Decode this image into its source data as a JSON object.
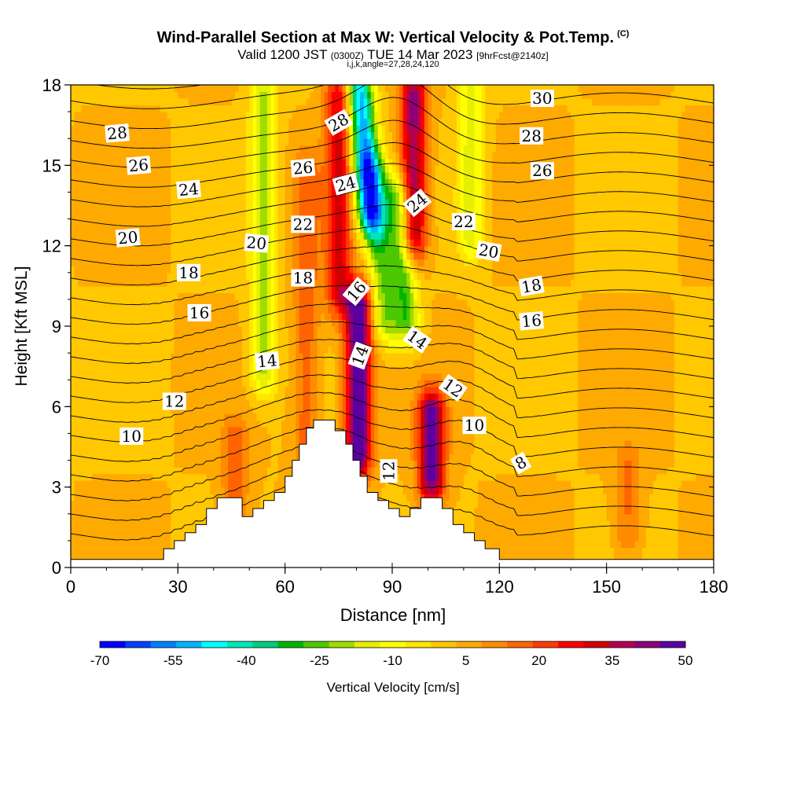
{
  "title": {
    "main": "Wind-Parallel Section at Max W: Vertical Velocity & Pot.Temp.",
    "main_mark": "(C)",
    "valid_prefix": "Valid 1200 JST",
    "valid_utc": "(0300Z)",
    "valid_date": "TUE 14 Mar 2023",
    "forecast": "[9hrFcst@2140z]",
    "indices": "i,j,k,angle=27,28,24,120"
  },
  "chart_data": {
    "type": "heatmap",
    "xlabel": "Distance [nm]",
    "ylabel": "Height [Kft MSL]",
    "xlim": [
      0,
      180
    ],
    "ylim": [
      0,
      18
    ],
    "xticks": [
      0,
      30,
      60,
      90,
      120,
      150,
      180
    ],
    "yticks": [
      0,
      3,
      6,
      9,
      12,
      15,
      18
    ],
    "colorbar": {
      "label": "Vertical Velocity [cm/s]",
      "tick_labels": [
        "-70",
        "-55",
        "-40",
        "-25",
        "-10",
        "5",
        "20",
        "35",
        "50"
      ],
      "range": [
        -70,
        50
      ],
      "colors": [
        "#0000ff",
        "#0040ff",
        "#0080ff",
        "#00b4ff",
        "#00ffff",
        "#00e6b4",
        "#00cc80",
        "#00b400",
        "#4cc800",
        "#a0dc00",
        "#e6f000",
        "#ffff00",
        "#ffe600",
        "#ffc800",
        "#ffaa00",
        "#ff8c00",
        "#ff6400",
        "#ff3c00",
        "#ff0000",
        "#d20000",
        "#b40050",
        "#8c0078",
        "#5a00a0"
      ]
    },
    "background_velocity": 3,
    "velocity_features": [
      {
        "x": 54,
        "y0": 7,
        "y1": 18,
        "w": -22
      },
      {
        "x": 66,
        "y0": 4,
        "y1": 15,
        "w": 14
      },
      {
        "x": 75,
        "y0": 10,
        "y1": 18,
        "w": 28
      },
      {
        "x": 80.5,
        "y0": 4,
        "y1": 10,
        "w": 50
      },
      {
        "x": 82,
        "y0": 13,
        "y1": 18,
        "w": -55
      },
      {
        "x": 84,
        "y0": 9,
        "y1": 15,
        "w": -25
      },
      {
        "x": 90,
        "y0": 9,
        "y1": 14,
        "w": -30
      },
      {
        "x": 96,
        "y0": 12,
        "y1": 18,
        "w": 38
      },
      {
        "x": 101,
        "y0": 3,
        "y1": 6,
        "w": 45
      },
      {
        "x": 112,
        "y0": 12,
        "y1": 18,
        "w": -18
      },
      {
        "x": 46,
        "y0": 2,
        "y1": 5,
        "w": 14
      },
      {
        "x": 156,
        "y0": 1,
        "y1": 4,
        "w": 12
      }
    ],
    "terrain": [
      [
        0,
        0.3
      ],
      [
        26,
        0.3
      ],
      [
        26,
        0.7
      ],
      [
        29,
        0.7
      ],
      [
        29,
        1.0
      ],
      [
        32,
        1.0
      ],
      [
        32,
        1.3
      ],
      [
        35,
        1.3
      ],
      [
        35,
        1.6
      ],
      [
        38,
        1.6
      ],
      [
        38,
        2.2
      ],
      [
        41,
        2.2
      ],
      [
        41,
        2.6
      ],
      [
        48,
        2.6
      ],
      [
        48,
        1.9
      ],
      [
        51,
        1.9
      ],
      [
        51,
        2.2
      ],
      [
        54,
        2.2
      ],
      [
        54,
        2.5
      ],
      [
        57,
        2.5
      ],
      [
        57,
        2.8
      ],
      [
        60,
        2.8
      ],
      [
        60,
        3.4
      ],
      [
        62,
        3.4
      ],
      [
        62,
        4.0
      ],
      [
        64,
        4.0
      ],
      [
        64,
        4.6
      ],
      [
        66,
        4.6
      ],
      [
        66,
        5.2
      ],
      [
        68,
        5.2
      ],
      [
        68,
        5.5
      ],
      [
        74,
        5.5
      ],
      [
        74,
        5.1
      ],
      [
        77,
        5.1
      ],
      [
        77,
        4.6
      ],
      [
        79,
        4.6
      ],
      [
        79,
        4.0
      ],
      [
        81,
        4.0
      ],
      [
        81,
        3.4
      ],
      [
        83,
        3.4
      ],
      [
        83,
        2.8
      ],
      [
        86,
        2.8
      ],
      [
        86,
        2.5
      ],
      [
        89,
        2.5
      ],
      [
        89,
        2.2
      ],
      [
        92,
        2.2
      ],
      [
        92,
        1.9
      ],
      [
        95,
        1.9
      ],
      [
        95,
        2.2
      ],
      [
        98,
        2.2
      ],
      [
        98,
        2.6
      ],
      [
        104,
        2.6
      ],
      [
        104,
        2.2
      ],
      [
        107,
        2.2
      ],
      [
        107,
        1.6
      ],
      [
        110,
        1.6
      ],
      [
        110,
        1.3
      ],
      [
        113,
        1.3
      ],
      [
        113,
        1.0
      ],
      [
        116,
        1.0
      ],
      [
        116,
        0.7
      ],
      [
        120,
        0.7
      ],
      [
        120,
        0.3
      ],
      [
        124,
        0.3
      ],
      [
        124,
        0.3
      ],
      [
        181,
        0.3
      ]
    ],
    "theta_contour_levels": [
      8,
      9,
      10,
      11,
      12,
      13,
      14,
      15,
      16,
      17,
      18,
      19,
      20,
      21,
      22,
      23,
      24,
      25,
      26,
      27,
      28,
      29,
      30,
      31
    ],
    "theta_labels": [
      {
        "text": "28",
        "x": 13,
        "y": 16.2,
        "angle": -5
      },
      {
        "text": "26",
        "x": 19,
        "y": 15.0,
        "angle": -5
      },
      {
        "text": "24",
        "x": 33,
        "y": 14.1,
        "angle": -5
      },
      {
        "text": "20",
        "x": 16,
        "y": 12.3,
        "angle": -5
      },
      {
        "text": "18",
        "x": 33,
        "y": 11.0,
        "angle": 0
      },
      {
        "text": "16",
        "x": 36,
        "y": 9.5,
        "angle": 0
      },
      {
        "text": "12",
        "x": 29,
        "y": 6.2,
        "angle": 0
      },
      {
        "text": "10",
        "x": 17,
        "y": 4.9,
        "angle": 0
      },
      {
        "text": "14",
        "x": 55,
        "y": 7.7,
        "angle": -5
      },
      {
        "text": "28",
        "x": 75,
        "y": 16.6,
        "angle": -30
      },
      {
        "text": "26",
        "x": 65,
        "y": 14.9,
        "angle": -5
      },
      {
        "text": "24",
        "x": 77,
        "y": 14.3,
        "angle": -15
      },
      {
        "text": "22",
        "x": 65,
        "y": 12.8,
        "angle": 0
      },
      {
        "text": "20",
        "x": 52,
        "y": 12.1,
        "angle": 5
      },
      {
        "text": "18",
        "x": 65,
        "y": 10.8,
        "angle": 0
      },
      {
        "text": "16",
        "x": 80,
        "y": 10.3,
        "angle": -50
      },
      {
        "text": "14",
        "x": 81,
        "y": 7.9,
        "angle": -70
      },
      {
        "text": "12",
        "x": 89,
        "y": 3.6,
        "angle": -90
      },
      {
        "text": "24",
        "x": 97,
        "y": 13.6,
        "angle": -40
      },
      {
        "text": "22",
        "x": 110,
        "y": 12.9,
        "angle": 0
      },
      {
        "text": "20",
        "x": 117,
        "y": 11.8,
        "angle": 10
      },
      {
        "text": "18",
        "x": 129,
        "y": 10.5,
        "angle": -10
      },
      {
        "text": "16",
        "x": 129,
        "y": 9.2,
        "angle": -5
      },
      {
        "text": "14",
        "x": 97,
        "y": 8.5,
        "angle": 35
      },
      {
        "text": "12",
        "x": 107,
        "y": 6.7,
        "angle": 35
      },
      {
        "text": "10",
        "x": 113,
        "y": 5.3,
        "angle": 0
      },
      {
        "text": "8",
        "x": 126,
        "y": 3.9,
        "angle": -30
      },
      {
        "text": "30",
        "x": 132,
        "y": 17.5,
        "angle": 0
      },
      {
        "text": "28",
        "x": 129,
        "y": 16.1,
        "angle": 0
      },
      {
        "text": "26",
        "x": 132,
        "y": 14.8,
        "angle": 0
      }
    ]
  }
}
